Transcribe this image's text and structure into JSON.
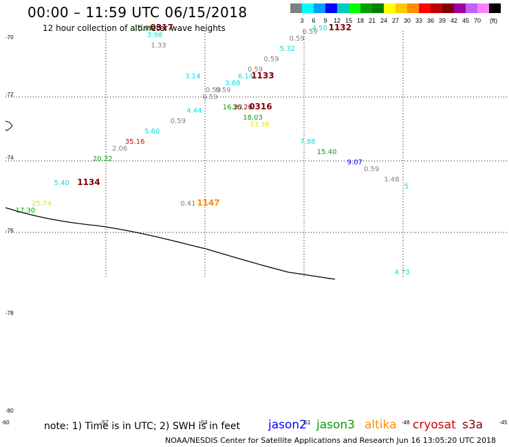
{
  "header": {
    "title": "00:00 – 11:59 UTC 06/15/2018",
    "subtitle": "12 hour collection of altimeter wave heights"
  },
  "colorbar": {
    "colors": [
      "#808080",
      "#00ffff",
      "#00a0ff",
      "#0000ff",
      "#00c8c8",
      "#00ff00",
      "#00a000",
      "#008000",
      "#ffff00",
      "#ffc800",
      "#ff8c00",
      "#ff0000",
      "#c00000",
      "#800000",
      "#a000a0",
      "#c060ff",
      "#ff80ff",
      "#000000"
    ],
    "ticks": [
      "3",
      "6",
      "9",
      "12",
      "15",
      "18",
      "21",
      "24",
      "27",
      "30",
      "33",
      "36",
      "39",
      "42",
      "45",
      "70"
    ],
    "unit": "(ft)"
  },
  "footer": {
    "note": "note: 1) Time is in UTC; 2) SWH is in feet",
    "satellites": [
      {
        "name": "jason2",
        "color": "#0000ff"
      },
      {
        "name": "jason3",
        "color": "#00a000"
      },
      {
        "name": "altika",
        "color": "#ff8c00"
      },
      {
        "name": "cryosat",
        "color": "#cc0000"
      },
      {
        "name": "s3a",
        "color": "#800000"
      }
    ],
    "credit": "NOAA/NESDIS Center for Satellite Applications and Research    Jun 16 13:05:20 UTC 2018"
  },
  "chart_data": {
    "type": "scatter",
    "title": "00:00 – 11:59 UTC 06/15/2018",
    "subtitle": "12 hour collection of altimeter wave heights",
    "lon_labels": [
      "-57",
      "-54",
      "-51",
      "-48",
      "-45"
    ],
    "lat_labels": [
      "-70",
      "-72",
      "-74",
      "-76",
      "-78",
      "-80"
    ],
    "bottom_left_label": "-60",
    "series": [
      {
        "name": "jason3",
        "color": "#00a000"
      },
      {
        "name": "altika",
        "color": "#ff8c00"
      },
      {
        "name": "cryosat",
        "color": "#cc0000"
      },
      {
        "name": "s3a",
        "color": "#800000"
      }
    ],
    "points": [
      {
        "lon": -56.0,
        "lat": -70.2,
        "value": "15.03",
        "color": "#00a000"
      },
      {
        "lon": -55.6,
        "lat": -70.4,
        "value": "3.98",
        "color": "#00e0e0"
      },
      {
        "lon": -55.5,
        "lat": -70.7,
        "value": "1.33",
        "color": "#808080"
      },
      {
        "lon": -50.6,
        "lat": -70.2,
        "value": "4.50",
        "color": "#00e0e0"
      },
      {
        "lon": -50.9,
        "lat": -70.3,
        "value": "0.59",
        "color": "#808080"
      },
      {
        "lon": -51.3,
        "lat": -70.5,
        "value": "0.59",
        "color": "#808080"
      },
      {
        "lon": -51.6,
        "lat": -70.8,
        "value": "5.32",
        "color": "#00e0e0"
      },
      {
        "lon": -52.1,
        "lat": -71.1,
        "value": "0.59",
        "color": "#808080"
      },
      {
        "lon": -52.6,
        "lat": -71.4,
        "value": "0.59",
        "color": "#808080"
      },
      {
        "lon": -52.9,
        "lat": -71.6,
        "value": "6.14",
        "color": "#00e0e0"
      },
      {
        "lon": -53.3,
        "lat": -71.8,
        "value": "3.68",
        "color": "#00e0e0"
      },
      {
        "lon": -54.5,
        "lat": -71.6,
        "value": "3.14",
        "color": "#00e0e0"
      },
      {
        "lon": -53.6,
        "lat": -72.0,
        "value": "0.59",
        "color": "#808080"
      },
      {
        "lon": -53.9,
        "lat": -72.0,
        "value": "0.59",
        "color": "#808080"
      },
      {
        "lon": -54.0,
        "lat": -72.2,
        "value": "0.59",
        "color": "#808080"
      },
      {
        "lon": -53.4,
        "lat": -72.5,
        "value": "16.23",
        "color": "#00a000"
      },
      {
        "lon": -53.1,
        "lat": -72.5,
        "value": "36.20",
        "color": "#800000"
      },
      {
        "lon": -52.8,
        "lat": -72.8,
        "value": "18.03",
        "color": "#00a000"
      },
      {
        "lon": -52.6,
        "lat": -73.0,
        "value": "23.36",
        "color": "#e6e600"
      },
      {
        "lon": -54.5,
        "lat": -72.6,
        "value": "4.44",
        "color": "#00e0e0"
      },
      {
        "lon": -55.0,
        "lat": -72.9,
        "value": "0.59",
        "color": "#808080"
      },
      {
        "lon": -55.8,
        "lat": -73.2,
        "value": "5.60",
        "color": "#00e0e0"
      },
      {
        "lon": -56.4,
        "lat": -73.5,
        "value": "35.16",
        "color": "#cc0000"
      },
      {
        "lon": -56.8,
        "lat": -73.7,
        "value": "2.06",
        "color": "#808080"
      },
      {
        "lon": -57.4,
        "lat": -74.0,
        "value": "20.22",
        "color": "#00a000"
      },
      {
        "lon": -51.1,
        "lat": -73.5,
        "value": "7.88",
        "color": "#00e0e0"
      },
      {
        "lon": -50.6,
        "lat": -73.8,
        "value": "15.40",
        "color": "#00a000"
      },
      {
        "lon": -49.7,
        "lat": -74.1,
        "value": "9.07",
        "color": "#0000ff"
      },
      {
        "lon": -49.2,
        "lat": -74.3,
        "value": "0.59",
        "color": "#808080"
      },
      {
        "lon": -48.6,
        "lat": -74.6,
        "value": "1.48",
        "color": "#808080"
      },
      {
        "lon": -48.0,
        "lat": -74.8,
        "value": "5",
        "color": "#00e0e0"
      },
      {
        "lon": -58.6,
        "lat": -74.7,
        "value": "5.40",
        "color": "#00e0e0"
      },
      {
        "lon": -59.3,
        "lat": -75.3,
        "value": "25.74",
        "color": "#e6e600"
      },
      {
        "lon": -59.8,
        "lat": -75.5,
        "value": "17.30",
        "color": "#00a000"
      },
      {
        "lon": -54.8,
        "lat": -75.3,
        "value": "0.41",
        "color": "#808080"
      },
      {
        "lon": -48.4,
        "lat": -77.3,
        "value": "4.73",
        "color": "#00e0e0"
      }
    ],
    "time_labels": [
      {
        "text": "0317",
        "lon": -55.5,
        "lat": -70.2,
        "color": "#800000"
      },
      {
        "text": "1132",
        "lon": -50.1,
        "lat": -70.2,
        "color": "#800000"
      },
      {
        "text": "1133",
        "lon": -52.5,
        "lat": -71.6,
        "color": "#800000"
      },
      {
        "text": "0316",
        "lon": -52.6,
        "lat": -72.5,
        "color": "#800000"
      },
      {
        "text": "1134",
        "lon": -57.9,
        "lat": -74.7,
        "color": "#800000"
      },
      {
        "text": "1147",
        "lon": -54.3,
        "lat": -75.3,
        "color": "#ff8c00"
      }
    ]
  }
}
